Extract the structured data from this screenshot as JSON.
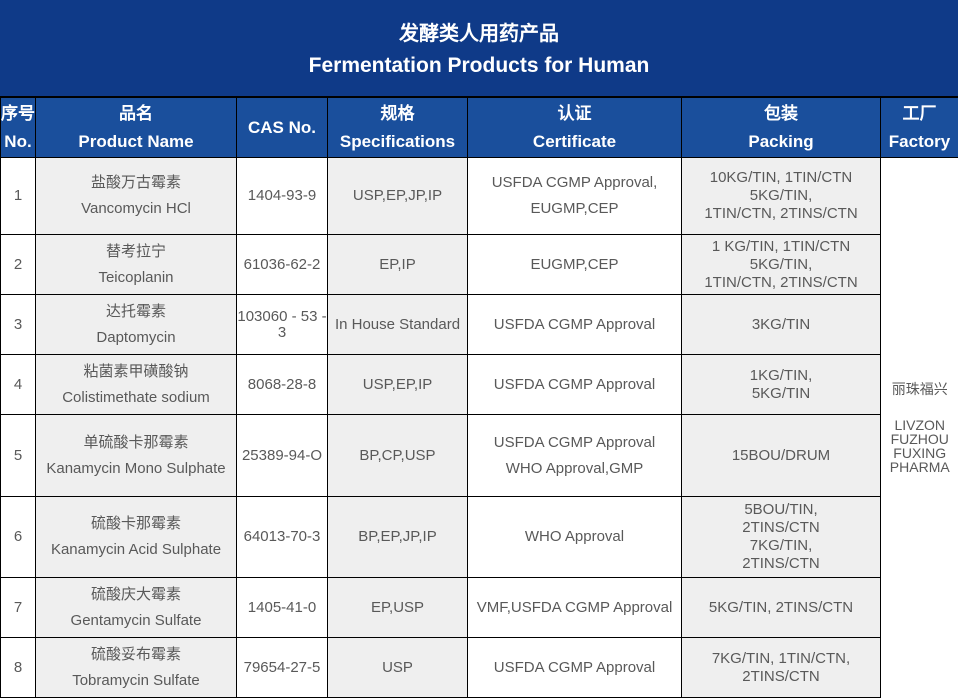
{
  "title": {
    "zh": "发酵类人用药产品",
    "en": "Fermentation Products for Human"
  },
  "headers": [
    {
      "zh": "序号",
      "en": "No."
    },
    {
      "zh": "品名",
      "en": "Product Name"
    },
    {
      "zh": "",
      "en": "CAS No."
    },
    {
      "zh": "规格",
      "en": "Specifications"
    },
    {
      "zh": "认证",
      "en": "Certificate"
    },
    {
      "zh": "包装",
      "en": "Packing"
    },
    {
      "zh": "工厂",
      "en": "Factory"
    }
  ],
  "factory": {
    "zh": "丽珠福兴",
    "en": [
      "LIVZON",
      "FUZHOU",
      "FUXING",
      "PHARMA"
    ]
  },
  "rows": [
    {
      "no": "1",
      "zh": "盐酸万古霉素",
      "en": "Vancomycin HCl",
      "cas": "1404-93-9",
      "spec": "USP,EP,JP,IP",
      "cert": [
        "USFDA CGMP Approval,",
        "EUGMP,CEP"
      ],
      "pack": [
        "10KG/TIN, 1TIN/CTN",
        "5KG/TIN,",
        "1TIN/CTN, 2TINS/CTN"
      ]
    },
    {
      "no": "2",
      "zh": "替考拉宁",
      "en": "Teicoplanin",
      "cas": "61036-62-2",
      "spec": "EP,IP",
      "cert": [
        "EUGMP,CEP"
      ],
      "pack": [
        "1 KG/TIN, 1TIN/CTN",
        "5KG/TIN,",
        "1TIN/CTN, 2TINS/CTN"
      ]
    },
    {
      "no": "3",
      "zh": "达托霉素",
      "en": "Daptomycin",
      "cas": "103060 - 53 - 3",
      "spec": "In House Standard",
      "cert": [
        "USFDA CGMP Approval"
      ],
      "pack": [
        "3KG/TIN"
      ]
    },
    {
      "no": "4",
      "zh": "粘菌素甲磺酸钠",
      "en": "Colistimethate sodium",
      "cas": "8068-28-8",
      "spec": "USP,EP,IP",
      "cert": [
        "USFDA CGMP Approval"
      ],
      "pack": [
        "1KG/TIN,",
        "5KG/TIN"
      ]
    },
    {
      "no": "5",
      "zh": "单硫酸卡那霉素",
      "en": "Kanamycin Mono Sulphate",
      "cas": "25389-94-O",
      "spec": "BP,CP,USP",
      "cert": [
        "USFDA CGMP Approval",
        "WHO Approval,GMP"
      ],
      "pack": [
        "15BOU/DRUM"
      ]
    },
    {
      "no": "6",
      "zh": "硫酸卡那霉素",
      "en": "Kanamycin Acid Sulphate",
      "cas": "64013-70-3",
      "spec": "BP,EP,JP,IP",
      "cert": [
        "WHO Approval"
      ],
      "pack": [
        "5BOU/TIN,",
        "2TINS/CTN",
        "7KG/TIN,",
        "2TINS/CTN"
      ]
    },
    {
      "no": "7",
      "zh": "硫酸庆大霉素",
      "en": "Gentamycin Sulfate",
      "cas": "1405-41-0",
      "spec": "EP,USP",
      "cert": [
        "VMF,USFDA CGMP Approval"
      ],
      "pack": [
        "5KG/TIN, 2TINS/CTN"
      ]
    },
    {
      "no": "8",
      "zh": "硫酸妥布霉素",
      "en": "Tobramycin Sulfate",
      "cas": "79654-27-5",
      "spec": "USP",
      "cert": [
        "USFDA CGMP Approval"
      ],
      "pack": [
        "7KG/TIN, 1TIN/CTN,",
        "2TINS/CTN"
      ]
    }
  ]
}
